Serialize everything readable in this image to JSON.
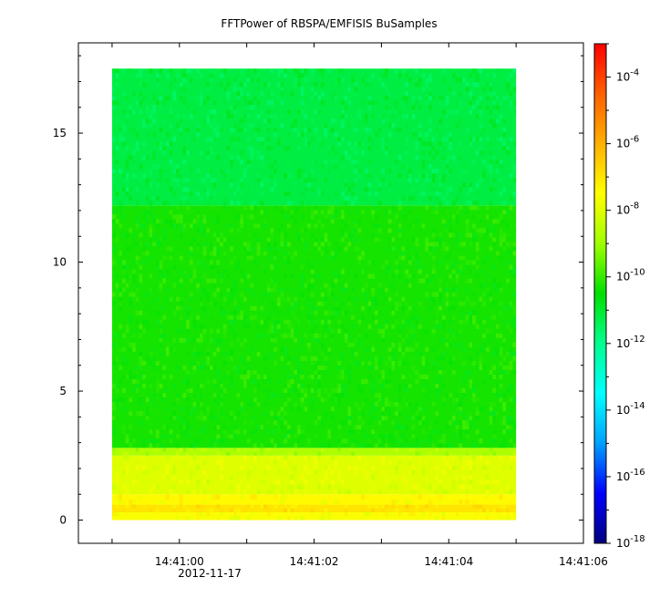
{
  "chart_data": {
    "type": "heatmap",
    "title": "FFTPower of RBSPA/EMFISIS  BuSamples",
    "xlabel": "",
    "ylabel": "",
    "x_start": "14:40:59",
    "x_end": "14:41:05",
    "xlim": [
      "14:40:58.5",
      "14:41:06"
    ],
    "x_ticks": [
      "14:41:00",
      "14:41:02",
      "14:41:04",
      "14:41:06"
    ],
    "x_date_label": "2012-11-17",
    "ylim": [
      -0.9,
      18.5
    ],
    "y_ticks": [
      "0",
      "5",
      "10",
      "15"
    ],
    "y_start": 0,
    "y_end": 17.5,
    "zscale": "log",
    "zlim": [
      1e-18,
      0.001
    ],
    "z_ticks": [
      {
        "base": "10",
        "exp": "-4"
      },
      {
        "base": "10",
        "exp": "-6"
      },
      {
        "base": "10",
        "exp": "-8"
      },
      {
        "base": "10",
        "exp": "-10"
      },
      {
        "base": "10",
        "exp": "-12"
      },
      {
        "base": "10",
        "exp": "-14"
      },
      {
        "base": "10",
        "exp": "-16"
      },
      {
        "base": "10",
        "exp": "-18"
      }
    ],
    "colormap": [
      "#00007f",
      "#0000ff",
      "#00a0ff",
      "#00ffff",
      "#00ff90",
      "#00e000",
      "#a0ff00",
      "#ffff00",
      "#ffb000",
      "#ff6000",
      "#ff0000"
    ],
    "bands": [
      {
        "y_from": 0,
        "y_to": 0.3,
        "log_power": -7.6
      },
      {
        "y_from": 0.3,
        "y_to": 0.6,
        "log_power": -7.0
      },
      {
        "y_from": 0.6,
        "y_to": 1.0,
        "log_power": -7.4
      },
      {
        "y_from": 1.0,
        "y_to": 2.5,
        "log_power": -8.0
      },
      {
        "y_from": 2.5,
        "y_to": 2.8,
        "log_power": -8.8
      },
      {
        "y_from": 2.8,
        "y_to": 12.2,
        "log_power": -10.3
      },
      {
        "y_from": 12.2,
        "y_to": 17.5,
        "log_power": -11.2
      }
    ]
  }
}
